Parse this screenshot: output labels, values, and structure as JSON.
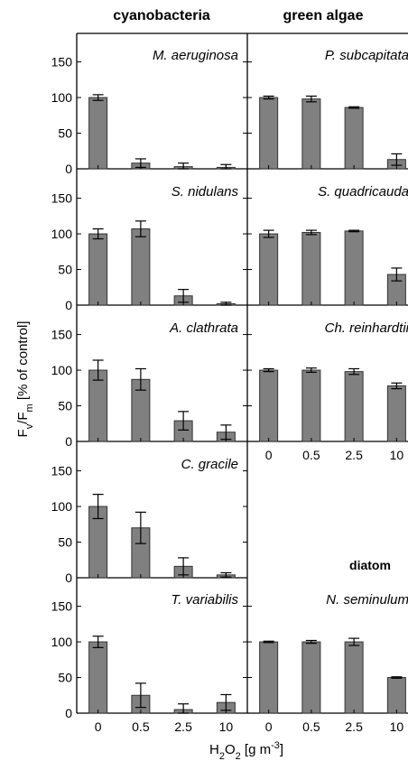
{
  "column_titles": [
    "cyanobacteria",
    "green algae"
  ],
  "y_axis_label": "Fv/Fm [% of control]",
  "x_axis_label": "H2O2 [g m-3]",
  "colors": {
    "bar": "#808080",
    "bar_edge": "#333333",
    "axis": "#000000"
  },
  "chart_data": [
    {
      "type": "bar",
      "group": "cyanobacteria",
      "title": "M. aeruginosa",
      "categories": [
        "0",
        "0.5",
        "2.5",
        "10"
      ],
      "values": [
        100,
        8,
        3,
        2
      ],
      "errors": [
        4,
        6,
        5,
        4
      ],
      "xlabel": "",
      "ylabel": "",
      "ylim": [
        0,
        190
      ],
      "yticks": [
        0,
        50,
        100,
        150
      ],
      "show_xticks": false
    },
    {
      "type": "bar",
      "group": "green algae",
      "title": "P. subcapitata",
      "categories": [
        "0",
        "0.5",
        "2.5",
        "10"
      ],
      "values": [
        100,
        98,
        86,
        13
      ],
      "errors": [
        2,
        4,
        1,
        8
      ],
      "xlabel": "",
      "ylabel": "",
      "ylim": [
        0,
        190
      ],
      "yticks": [
        0,
        50,
        100,
        150
      ],
      "show_xticks": false
    },
    {
      "type": "bar",
      "group": "cyanobacteria",
      "title": "S. nidulans",
      "categories": [
        "0",
        "0.5",
        "2.5",
        "10"
      ],
      "values": [
        100,
        107,
        13,
        2
      ],
      "errors": [
        7,
        11,
        9,
        2
      ],
      "xlabel": "",
      "ylabel": "",
      "ylim": [
        0,
        190
      ],
      "yticks": [
        0,
        50,
        100,
        150
      ],
      "show_xticks": false
    },
    {
      "type": "bar",
      "group": "green algae",
      "title": "S. quadricauda",
      "categories": [
        "0",
        "0.5",
        "2.5",
        "10"
      ],
      "values": [
        100,
        102,
        104,
        43
      ],
      "errors": [
        5,
        3,
        1,
        9
      ],
      "xlabel": "",
      "ylabel": "",
      "ylim": [
        0,
        190
      ],
      "yticks": [
        0,
        50,
        100,
        150
      ],
      "show_xticks": false
    },
    {
      "type": "bar",
      "group": "cyanobacteria",
      "title": "A. clathrata",
      "categories": [
        "0",
        "0.5",
        "2.5",
        "10"
      ],
      "values": [
        100,
        87,
        29,
        13
      ],
      "errors": [
        14,
        15,
        13,
        10
      ],
      "xlabel": "",
      "ylabel": "",
      "ylim": [
        0,
        190
      ],
      "yticks": [
        0,
        50,
        100,
        150
      ],
      "show_xticks": false
    },
    {
      "type": "bar",
      "group": "green algae",
      "title": "Ch. reinhardtii",
      "categories": [
        "0",
        "0.5",
        "2.5",
        "10"
      ],
      "values": [
        100,
        100,
        98,
        78
      ],
      "errors": [
        2,
        3,
        4,
        4
      ],
      "xlabel": "",
      "ylabel": "",
      "ylim": [
        0,
        190
      ],
      "yticks": [
        0,
        50,
        100,
        150
      ],
      "show_xticks": true
    },
    {
      "type": "bar",
      "group": "cyanobacteria",
      "title": "C. gracile",
      "categories": [
        "0",
        "0.5",
        "2.5",
        "10"
      ],
      "values": [
        100,
        70,
        16,
        4
      ],
      "errors": [
        17,
        22,
        12,
        3
      ],
      "xlabel": "",
      "ylabel": "",
      "ylim": [
        0,
        190
      ],
      "yticks": [
        0,
        50,
        100,
        150
      ],
      "show_xticks": false
    },
    {
      "type": "bar",
      "group": "cyanobacteria",
      "title": "T. variabilis",
      "categories": [
        "0",
        "0.5",
        "2.5",
        "10"
      ],
      "values": [
        100,
        25,
        5,
        15
      ],
      "errors": [
        8,
        17,
        8,
        11
      ],
      "xlabel": "",
      "ylabel": "",
      "ylim": [
        0,
        190
      ],
      "yticks": [
        0,
        50,
        100,
        150
      ],
      "show_xticks": true
    },
    {
      "type": "bar",
      "group": "diatom",
      "title": "N. seminulum",
      "categories": [
        "0",
        "0.5",
        "2.5",
        "10"
      ],
      "values": [
        100,
        100,
        100,
        50
      ],
      "errors": [
        1,
        2,
        5,
        1
      ],
      "xlabel": "",
      "ylabel": "",
      "ylim": [
        0,
        190
      ],
      "yticks": [
        0,
        50,
        100,
        150
      ],
      "show_xticks": true
    }
  ],
  "section_labels": {
    "diatom": "diatom"
  }
}
